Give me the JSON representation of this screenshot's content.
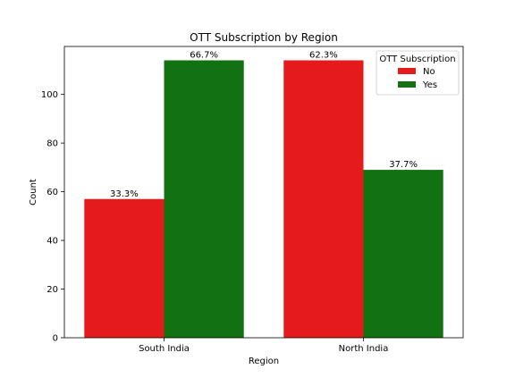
{
  "chart_data": {
    "type": "bar",
    "title": "OTT Subscription by Region",
    "xlabel": "Region",
    "ylabel": "Count",
    "categories": [
      "South India",
      "North India"
    ],
    "series": [
      {
        "name": "No",
        "color": "#e41a1c",
        "values": [
          57,
          114
        ],
        "labels": [
          "33.3%",
          "62.3%"
        ]
      },
      {
        "name": "Yes",
        "color": "#127212",
        "values": [
          114,
          69
        ],
        "labels": [
          "66.7%",
          "37.7%"
        ]
      }
    ],
    "ylim": [
      0,
      119.7
    ],
    "yticks": [
      0,
      20,
      40,
      60,
      80,
      100
    ],
    "legend": {
      "title": "OTT Subscription",
      "placement": "top-right"
    },
    "grid": false
  }
}
